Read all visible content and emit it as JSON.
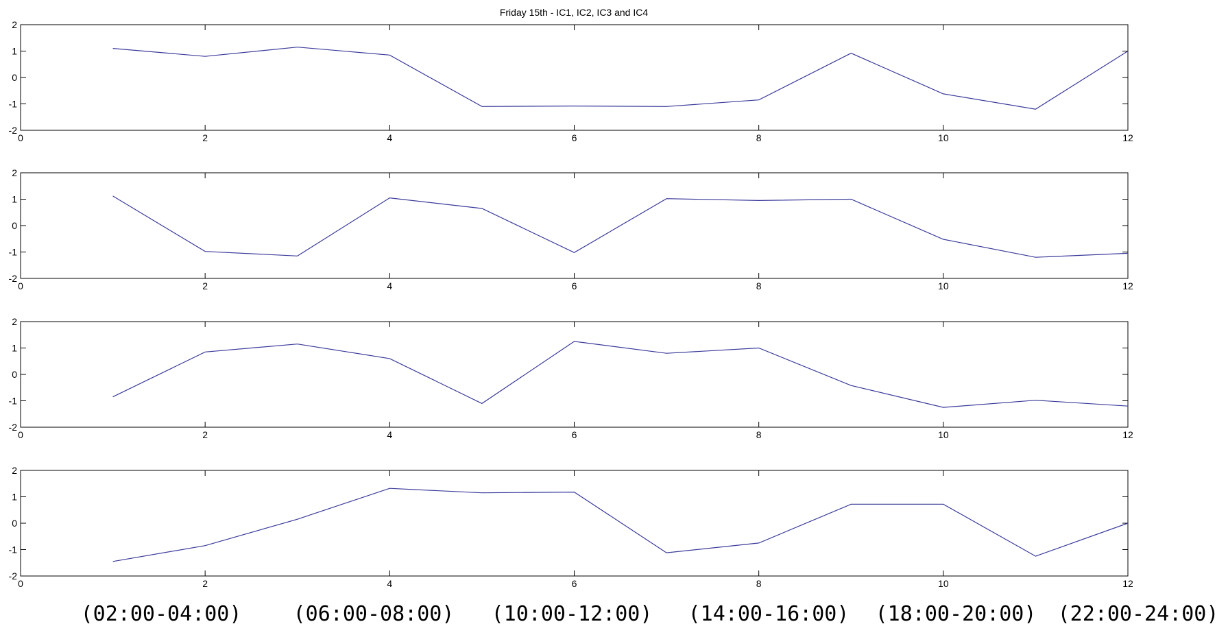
{
  "chart_data": [
    {
      "type": "line",
      "title": "Friday 15th - IC1, IC2, IC3 and IC4",
      "x": [
        1,
        2,
        3,
        4,
        5,
        6,
        7,
        8,
        9,
        10,
        11,
        12
      ],
      "values": [
        1.1,
        0.8,
        1.15,
        0.85,
        -1.1,
        -1.08,
        -1.1,
        -0.85,
        0.92,
        -0.62,
        -1.2,
        1.0
      ],
      "xlim": [
        0,
        12
      ],
      "ylim": [
        -2,
        2
      ],
      "xticks": [
        "0",
        "2",
        "4",
        "6",
        "8",
        "10",
        "12"
      ],
      "yticks": [
        "2",
        "1",
        "0",
        "-1",
        "-2"
      ],
      "line_color": "#3a3a9a"
    },
    {
      "type": "line",
      "x": [
        1,
        2,
        3,
        4,
        5,
        6,
        7,
        8,
        9,
        10,
        11,
        12
      ],
      "values": [
        1.12,
        -0.98,
        -1.15,
        1.05,
        0.65,
        -1.02,
        1.02,
        0.95,
        1.0,
        -0.52,
        -1.2,
        -1.05
      ],
      "xlim": [
        0,
        12
      ],
      "ylim": [
        -2,
        2
      ],
      "xticks": [
        "0",
        "2",
        "4",
        "6",
        "8",
        "10",
        "12"
      ],
      "yticks": [
        "2",
        "1",
        "0",
        "-1",
        "-2"
      ],
      "line_color": "#3a3a9a"
    },
    {
      "type": "line",
      "x": [
        1,
        2,
        3,
        4,
        5,
        6,
        7,
        8,
        9,
        10,
        11,
        12
      ],
      "values": [
        -0.85,
        0.85,
        1.15,
        0.6,
        -1.1,
        1.25,
        0.8,
        1.0,
        -0.42,
        -1.25,
        -0.98,
        -1.2
      ],
      "xlim": [
        0,
        12
      ],
      "ylim": [
        -2,
        2
      ],
      "xticks": [
        "0",
        "2",
        "4",
        "6",
        "8",
        "10",
        "12"
      ],
      "yticks": [
        "2",
        "1",
        "0",
        "-1",
        "-2"
      ],
      "line_color": "#3a3a9a"
    },
    {
      "type": "line",
      "x": [
        1,
        2,
        3,
        4,
        5,
        6,
        7,
        8,
        9,
        10,
        11,
        12
      ],
      "values": [
        -1.45,
        -0.85,
        0.15,
        1.32,
        1.15,
        1.18,
        -1.12,
        -0.75,
        0.72,
        0.72,
        -1.25,
        0.0
      ],
      "xlim": [
        0,
        12
      ],
      "ylim": [
        -2,
        2
      ],
      "xticks": [
        "0",
        "2",
        "4",
        "6",
        "8",
        "10",
        "12"
      ],
      "yticks": [
        "2",
        "1",
        "0",
        "-1",
        "-2"
      ],
      "line_color": "#3a3a9a"
    }
  ],
  "time_labels": [
    "(02:00-04:00)",
    "(06:00-08:00)",
    "(10:00-12:00)",
    "(14:00-16:00)",
    "(18:00-20:00)",
    "(22:00-24:00)"
  ]
}
